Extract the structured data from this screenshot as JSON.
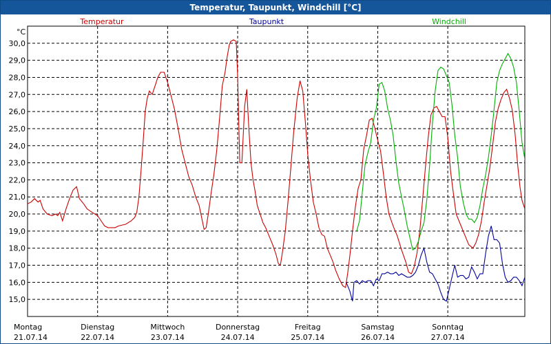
{
  "window": {
    "title": "Temperatur, Taupunkt, Windchill [°C]"
  },
  "chart_data": {
    "type": "line",
    "title": "Temperatur, Taupunkt, Windchill [°C]",
    "ylabel": "°C",
    "ylim": [
      14.0,
      31.0
    ],
    "yticks": [
      "15,0",
      "16,0",
      "17,0",
      "18,0",
      "19,0",
      "20,0",
      "21,0",
      "22,0",
      "23,0",
      "24,0",
      "25,0",
      "26,0",
      "27,0",
      "28,0",
      "29,0",
      "30,0"
    ],
    "grid": true,
    "xlim": [
      0.0,
      7.1
    ],
    "x_labels": [
      {
        "day": "Montag",
        "date": "21.07.14"
      },
      {
        "day": "Dienstag",
        "date": "22.07.14"
      },
      {
        "day": "Mittwoch",
        "date": "23.07.14"
      },
      {
        "day": "Donnerstag",
        "date": "24.07.14"
      },
      {
        "day": "Freitag",
        "date": "25.07.14"
      },
      {
        "day": "Samstag",
        "date": "26.07.14"
      },
      {
        "day": "Sonntag",
        "date": "27.07.14"
      }
    ],
    "series": [
      {
        "name": "Temperatur",
        "color": "#cc0000",
        "points": [
          [
            0.0,
            20.6
          ],
          [
            0.05,
            20.7
          ],
          [
            0.1,
            20.9
          ],
          [
            0.15,
            20.7
          ],
          [
            0.18,
            20.8
          ],
          [
            0.22,
            20.3
          ],
          [
            0.28,
            20.0
          ],
          [
            0.35,
            19.9
          ],
          [
            0.4,
            20.0
          ],
          [
            0.43,
            19.9
          ],
          [
            0.46,
            20.1
          ],
          [
            0.5,
            19.6
          ],
          [
            0.55,
            20.3
          ],
          [
            0.6,
            20.9
          ],
          [
            0.65,
            21.4
          ],
          [
            0.7,
            21.6
          ],
          [
            0.74,
            20.9
          ],
          [
            0.8,
            20.6
          ],
          [
            0.85,
            20.3
          ],
          [
            0.92,
            20.1
          ],
          [
            1.0,
            19.9
          ],
          [
            1.05,
            19.6
          ],
          [
            1.1,
            19.3
          ],
          [
            1.15,
            19.2
          ],
          [
            1.2,
            19.2
          ],
          [
            1.25,
            19.2
          ],
          [
            1.3,
            19.3
          ],
          [
            1.4,
            19.4
          ],
          [
            1.48,
            19.6
          ],
          [
            1.53,
            19.8
          ],
          [
            1.56,
            20.1
          ],
          [
            1.59,
            21.0
          ],
          [
            1.62,
            22.5
          ],
          [
            1.65,
            24.2
          ],
          [
            1.68,
            26.0
          ],
          [
            1.71,
            26.8
          ],
          [
            1.74,
            27.2
          ],
          [
            1.78,
            27.0
          ],
          [
            1.82,
            27.5
          ],
          [
            1.86,
            28.0
          ],
          [
            1.9,
            28.3
          ],
          [
            1.95,
            28.3
          ],
          [
            2.0,
            27.7
          ],
          [
            2.05,
            26.9
          ],
          [
            2.1,
            26.1
          ],
          [
            2.15,
            25.0
          ],
          [
            2.2,
            23.8
          ],
          [
            2.25,
            23.0
          ],
          [
            2.3,
            22.2
          ],
          [
            2.35,
            21.7
          ],
          [
            2.4,
            21.0
          ],
          [
            2.45,
            20.5
          ],
          [
            2.48,
            19.9
          ],
          [
            2.52,
            19.1
          ],
          [
            2.55,
            19.2
          ],
          [
            2.58,
            20.0
          ],
          [
            2.62,
            21.2
          ],
          [
            2.66,
            22.3
          ],
          [
            2.7,
            23.7
          ],
          [
            2.74,
            25.5
          ],
          [
            2.78,
            27.5
          ],
          [
            2.82,
            28.3
          ],
          [
            2.85,
            29.2
          ],
          [
            2.88,
            29.9
          ],
          [
            2.9,
            30.1
          ],
          [
            2.94,
            30.2
          ],
          [
            2.98,
            30.1
          ],
          [
            3.0,
            28.0
          ],
          [
            3.03,
            23.0
          ],
          [
            3.06,
            23.0
          ],
          [
            3.1,
            26.3
          ],
          [
            3.13,
            27.3
          ],
          [
            3.16,
            25.0
          ],
          [
            3.19,
            23.0
          ],
          [
            3.22,
            22.0
          ],
          [
            3.25,
            21.3
          ],
          [
            3.28,
            20.5
          ],
          [
            3.32,
            20.0
          ],
          [
            3.36,
            19.5
          ],
          [
            3.4,
            19.2
          ],
          [
            3.45,
            18.7
          ],
          [
            3.5,
            18.2
          ],
          [
            3.55,
            17.6
          ],
          [
            3.58,
            17.1
          ],
          [
            3.61,
            17.0
          ],
          [
            3.64,
            17.8
          ],
          [
            3.68,
            19.0
          ],
          [
            3.72,
            20.8
          ],
          [
            3.76,
            22.8
          ],
          [
            3.8,
            24.8
          ],
          [
            3.85,
            26.8
          ],
          [
            3.89,
            27.8
          ],
          [
            3.93,
            27.2
          ],
          [
            3.97,
            25.2
          ],
          [
            4.0,
            23.5
          ],
          [
            4.04,
            22.0
          ],
          [
            4.08,
            20.7
          ],
          [
            4.12,
            20.0
          ],
          [
            4.16,
            19.2
          ],
          [
            4.2,
            18.8
          ],
          [
            4.24,
            18.7
          ],
          [
            4.28,
            18.0
          ],
          [
            4.32,
            17.6
          ],
          [
            4.36,
            17.2
          ],
          [
            4.4,
            16.7
          ],
          [
            4.45,
            16.2
          ],
          [
            4.5,
            15.8
          ],
          [
            4.54,
            15.7
          ],
          [
            4.57,
            16.5
          ],
          [
            4.6,
            17.5
          ],
          [
            4.64,
            19.0
          ],
          [
            4.68,
            20.4
          ],
          [
            4.72,
            21.5
          ],
          [
            4.76,
            22.0
          ],
          [
            4.8,
            23.8
          ],
          [
            4.84,
            24.6
          ],
          [
            4.88,
            25.5
          ],
          [
            4.92,
            25.6
          ],
          [
            4.96,
            25.0
          ],
          [
            5.0,
            24.3
          ],
          [
            5.04,
            23.7
          ],
          [
            5.08,
            22.4
          ],
          [
            5.12,
            21.0
          ],
          [
            5.16,
            20.0
          ],
          [
            5.22,
            19.3
          ],
          [
            5.28,
            18.7
          ],
          [
            5.34,
            17.9
          ],
          [
            5.4,
            17.2
          ],
          [
            5.44,
            16.6
          ],
          [
            5.48,
            16.5
          ],
          [
            5.52,
            16.9
          ],
          [
            5.56,
            17.7
          ],
          [
            5.6,
            19.0
          ],
          [
            5.64,
            20.8
          ],
          [
            5.68,
            22.7
          ],
          [
            5.72,
            24.5
          ],
          [
            5.76,
            25.8
          ],
          [
            5.8,
            26.2
          ],
          [
            5.84,
            26.3
          ],
          [
            5.88,
            26.0
          ],
          [
            5.92,
            25.7
          ],
          [
            5.96,
            25.7
          ],
          [
            6.0,
            24.5
          ],
          [
            6.04,
            22.5
          ],
          [
            6.08,
            21.2
          ],
          [
            6.12,
            20.0
          ],
          [
            6.18,
            19.4
          ],
          [
            6.24,
            18.8
          ],
          [
            6.3,
            18.2
          ],
          [
            6.36,
            18.0
          ],
          [
            6.4,
            18.3
          ],
          [
            6.44,
            18.8
          ],
          [
            6.48,
            19.6
          ],
          [
            6.52,
            20.7
          ],
          [
            6.56,
            21.7
          ],
          [
            6.6,
            22.7
          ],
          [
            6.64,
            24.0
          ],
          [
            6.68,
            25.4
          ],
          [
            6.72,
            26.2
          ],
          [
            6.76,
            26.7
          ],
          [
            6.8,
            27.1
          ],
          [
            6.84,
            27.3
          ],
          [
            6.88,
            26.8
          ],
          [
            6.92,
            26.1
          ],
          [
            6.96,
            24.7
          ],
          [
            7.0,
            22.8
          ],
          [
            7.03,
            21.6
          ],
          [
            7.06,
            20.8
          ],
          [
            7.1,
            20.3
          ]
        ]
      },
      {
        "name": "Taupunkt",
        "color": "#00009c",
        "points": [
          [
            4.55,
            16.0
          ],
          [
            4.6,
            15.5
          ],
          [
            4.64,
            14.9
          ],
          [
            4.66,
            16.0
          ],
          [
            4.7,
            16.1
          ],
          [
            4.74,
            15.9
          ],
          [
            4.78,
            16.1
          ],
          [
            4.82,
            16.0
          ],
          [
            4.86,
            16.1
          ],
          [
            4.9,
            16.1
          ],
          [
            4.94,
            15.8
          ],
          [
            4.98,
            16.2
          ],
          [
            5.02,
            16.1
          ],
          [
            5.06,
            16.5
          ],
          [
            5.1,
            16.5
          ],
          [
            5.14,
            16.6
          ],
          [
            5.18,
            16.5
          ],
          [
            5.22,
            16.5
          ],
          [
            5.26,
            16.6
          ],
          [
            5.3,
            16.4
          ],
          [
            5.34,
            16.5
          ],
          [
            5.38,
            16.4
          ],
          [
            5.42,
            16.3
          ],
          [
            5.46,
            16.3
          ],
          [
            5.5,
            16.4
          ],
          [
            5.54,
            16.6
          ],
          [
            5.58,
            17.0
          ],
          [
            5.62,
            17.6
          ],
          [
            5.66,
            18.0
          ],
          [
            5.7,
            17.2
          ],
          [
            5.74,
            16.6
          ],
          [
            5.78,
            16.5
          ],
          [
            5.82,
            16.2
          ],
          [
            5.86,
            15.9
          ],
          [
            5.9,
            15.4
          ],
          [
            5.94,
            15.0
          ],
          [
            5.98,
            14.9
          ],
          [
            6.02,
            15.6
          ],
          [
            6.06,
            16.3
          ],
          [
            6.1,
            17.0
          ],
          [
            6.14,
            16.3
          ],
          [
            6.18,
            16.4
          ],
          [
            6.22,
            16.4
          ],
          [
            6.26,
            16.2
          ],
          [
            6.3,
            16.3
          ],
          [
            6.34,
            16.9
          ],
          [
            6.38,
            16.6
          ],
          [
            6.42,
            16.2
          ],
          [
            6.46,
            16.5
          ],
          [
            6.5,
            16.5
          ],
          [
            6.54,
            17.7
          ],
          [
            6.58,
            18.7
          ],
          [
            6.62,
            19.3
          ],
          [
            6.66,
            18.5
          ],
          [
            6.7,
            18.5
          ],
          [
            6.74,
            18.3
          ],
          [
            6.78,
            17.1
          ],
          [
            6.82,
            16.3
          ],
          [
            6.86,
            16.0
          ],
          [
            6.9,
            16.1
          ],
          [
            6.94,
            16.3
          ],
          [
            6.98,
            16.3
          ],
          [
            7.02,
            16.1
          ],
          [
            7.06,
            15.8
          ],
          [
            7.1,
            16.3
          ],
          [
            7.14,
            17.1
          ],
          [
            7.18,
            16.7
          ],
          [
            7.22,
            16.6
          ]
        ]
      },
      {
        "name": "Windchill",
        "color": "#00b000",
        "points": [
          [
            4.7,
            19.0
          ],
          [
            4.74,
            19.6
          ],
          [
            4.78,
            21.3
          ],
          [
            4.82,
            22.9
          ],
          [
            4.86,
            23.6
          ],
          [
            4.9,
            24.2
          ],
          [
            4.94,
            25.5
          ],
          [
            4.98,
            26.2
          ],
          [
            5.02,
            27.6
          ],
          [
            5.06,
            27.7
          ],
          [
            5.1,
            27.2
          ],
          [
            5.14,
            26.2
          ],
          [
            5.18,
            25.5
          ],
          [
            5.22,
            24.6
          ],
          [
            5.26,
            23.1
          ],
          [
            5.3,
            21.8
          ],
          [
            5.34,
            21.0
          ],
          [
            5.38,
            20.2
          ],
          [
            5.42,
            19.3
          ],
          [
            5.46,
            18.6
          ],
          [
            5.5,
            17.9
          ],
          [
            5.54,
            18.0
          ],
          [
            5.58,
            18.4
          ],
          [
            5.62,
            19.0
          ],
          [
            5.66,
            19.5
          ],
          [
            5.7,
            20.8
          ],
          [
            5.74,
            22.8
          ],
          [
            5.78,
            25.3
          ],
          [
            5.82,
            27.2
          ],
          [
            5.86,
            28.4
          ],
          [
            5.9,
            28.6
          ],
          [
            5.94,
            28.5
          ],
          [
            5.98,
            28.1
          ],
          [
            6.02,
            27.7
          ],
          [
            6.06,
            26.4
          ],
          [
            6.1,
            24.6
          ],
          [
            6.14,
            23.3
          ],
          [
            6.18,
            21.6
          ],
          [
            6.22,
            20.7
          ],
          [
            6.26,
            20.0
          ],
          [
            6.3,
            19.7
          ],
          [
            6.34,
            19.7
          ],
          [
            6.38,
            19.5
          ],
          [
            6.42,
            19.8
          ],
          [
            6.46,
            20.5
          ],
          [
            6.5,
            21.5
          ],
          [
            6.54,
            22.3
          ],
          [
            6.58,
            23.3
          ],
          [
            6.62,
            24.6
          ],
          [
            6.66,
            26.1
          ],
          [
            6.7,
            27.7
          ],
          [
            6.74,
            28.4
          ],
          [
            6.78,
            28.8
          ],
          [
            6.82,
            29.1
          ],
          [
            6.86,
            29.4
          ],
          [
            6.9,
            29.1
          ],
          [
            6.94,
            28.6
          ],
          [
            6.98,
            27.7
          ],
          [
            7.02,
            26.0
          ],
          [
            7.06,
            24.2
          ],
          [
            7.1,
            23.2
          ],
          [
            7.14,
            22.9
          ],
          [
            7.18,
            22.7
          ]
        ]
      }
    ]
  }
}
